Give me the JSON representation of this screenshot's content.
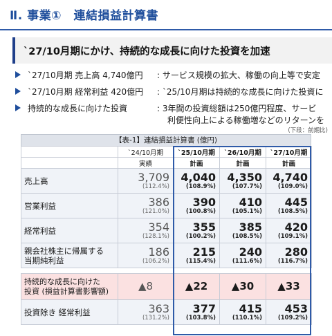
{
  "title": "Ⅱ. 事業①　連結損益計算書",
  "banner": "`27/10月期にかけ、持続的な成長に向けた投資を加速",
  "bullets": [
    {
      "label": "`27/10月期 売上高 4,740億円",
      "desc": ": サービス規模の拡大、稼働の向上等で安定",
      "desc2": ""
    },
    {
      "label": "`27/10月期 経常利益 420億円",
      "desc": ": `25/10月期は持続的な成長に向けた投資に",
      "desc2": ""
    },
    {
      "label": "持続的な成長に向けた投資",
      "desc": ": 3年間の投資総額は250億円程度、サービ",
      "desc2": "利便性向上による稼働増などのリターンを"
    }
  ],
  "unit_note": "(下段：前期比)",
  "table": {
    "caption": "【表-1】連結損益計算書 (億円)",
    "columns": [
      {
        "period": "`24/10月期",
        "kind": "実績"
      },
      {
        "period": "`25/10月期",
        "kind": "計画"
      },
      {
        "period": "`26/10月期",
        "kind": "計画"
      },
      {
        "period": "`27/10月期",
        "kind": "計画"
      }
    ],
    "rows": [
      {
        "name": "売上高",
        "values": [
          {
            "v": "3,709",
            "p": "(112.4%)"
          },
          {
            "v": "4,040",
            "p": "(108.9%)"
          },
          {
            "v": "4,350",
            "p": "(107.7%)"
          },
          {
            "v": "4,740",
            "p": "(109.0%)"
          }
        ]
      },
      {
        "name": "営業利益",
        "values": [
          {
            "v": "386",
            "p": "(121.0%)"
          },
          {
            "v": "390",
            "p": "(100.8%)"
          },
          {
            "v": "410",
            "p": "(105.1%)"
          },
          {
            "v": "445",
            "p": "(108.5%)"
          }
        ]
      },
      {
        "name": "経常利益",
        "values": [
          {
            "v": "354",
            "p": "(128.1%)"
          },
          {
            "v": "355",
            "p": "(100.2%)"
          },
          {
            "v": "385",
            "p": "(108.5%)"
          },
          {
            "v": "420",
            "p": "(109.1%)"
          }
        ]
      },
      {
        "name_line1": "親会社株主に帰属する",
        "name_line2": "当期純利益",
        "values": [
          {
            "v": "186",
            "p": "(106.2%)"
          },
          {
            "v": "215",
            "p": "(115.4%)"
          },
          {
            "v": "240",
            "p": "(111.6%)"
          },
          {
            "v": "280",
            "p": "(116.7%)"
          }
        ]
      },
      {
        "name_line1": "持続的な成長に向けた",
        "name_line2": "投資 (損益計算書影響額)",
        "values": [
          {
            "v": "▲8"
          },
          {
            "v": "▲22"
          },
          {
            "v": "▲30"
          },
          {
            "v": "▲33"
          }
        ]
      },
      {
        "name": "投資除き 経常利益",
        "values": [
          {
            "v": "363",
            "p": "(131.2%)"
          },
          {
            "v": "377",
            "p": "(103.8%)"
          },
          {
            "v": "415",
            "p": "(110.1%)"
          },
          {
            "v": "453",
            "p": "(109.2%)"
          }
        ]
      }
    ]
  }
}
